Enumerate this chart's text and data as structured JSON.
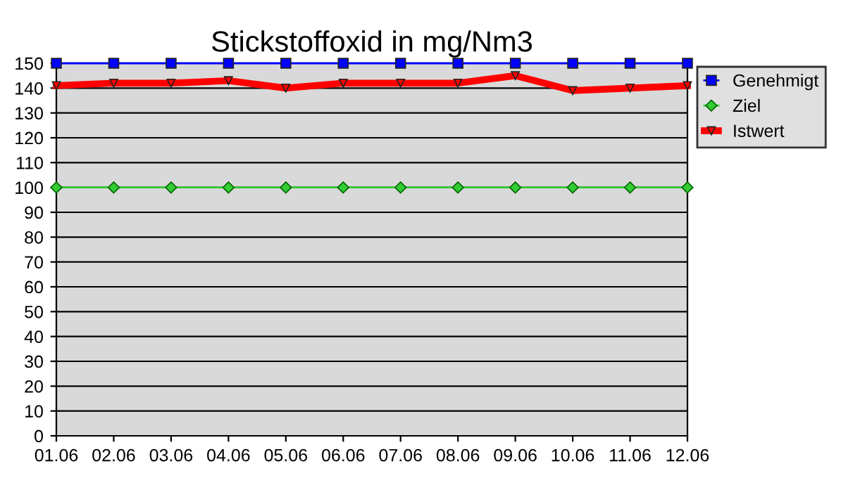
{
  "chart_data": {
    "type": "line",
    "title": "Stickstoffoxid in mg/Nm3",
    "categories": [
      "01.06",
      "02.06",
      "03.06",
      "04.06",
      "05.06",
      "06.06",
      "07.06",
      "08.06",
      "09.06",
      "10.06",
      "11.06",
      "12.06"
    ],
    "series": [
      {
        "name": "Genehmigt",
        "color": "#0000ff",
        "marker": "square",
        "values": [
          150,
          150,
          150,
          150,
          150,
          150,
          150,
          150,
          150,
          150,
          150,
          150
        ]
      },
      {
        "name": "Ziel",
        "color": "#33cc33",
        "marker": "diamond",
        "values": [
          100,
          100,
          100,
          100,
          100,
          100,
          100,
          100,
          100,
          100,
          100,
          100
        ]
      },
      {
        "name": "Istwert",
        "color": "#ff0000",
        "marker": "triangle",
        "values": [
          141,
          142,
          142,
          143,
          140,
          142,
          142,
          142,
          145,
          139,
          140,
          141
        ]
      }
    ],
    "ylim": [
      0,
      150
    ],
    "yticks": [
      0,
      10,
      20,
      30,
      40,
      50,
      60,
      70,
      80,
      90,
      100,
      110,
      120,
      130,
      140,
      150
    ],
    "grid": "y",
    "legend": "right"
  }
}
